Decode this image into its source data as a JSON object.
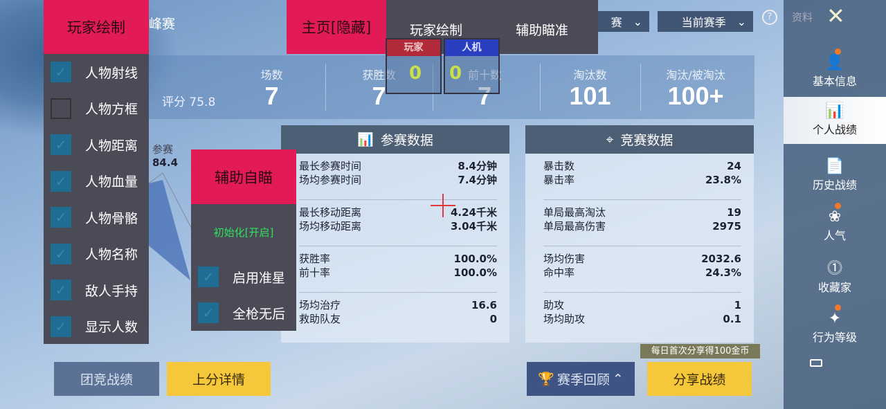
{
  "header": {
    "mode_fragment": "峰赛",
    "dropdown1": "赛",
    "dropdown2": "当前赛季",
    "help_icon": "question-circle-icon"
  },
  "stats": {
    "score_label": "评分 75.8",
    "items": [
      {
        "label": "场数",
        "value": "7"
      },
      {
        "label": "获胜数",
        "value": "7"
      },
      {
        "label": "前十数",
        "value": "7"
      },
      {
        "label": "淘汰数",
        "value": "101"
      },
      {
        "label": "淘汰/被淘汰",
        "value": "100+"
      }
    ]
  },
  "radar": {
    "label": "参赛",
    "value": "84.4"
  },
  "panel_left": {
    "title": "参赛数据",
    "groups": [
      [
        {
          "k": "最长参赛时间",
          "v": "8.4分钟"
        },
        {
          "k": "场均参赛时间",
          "v": "7.4分钟"
        }
      ],
      [
        {
          "k": "最长移动距离",
          "v": "4.24千米"
        },
        {
          "k": "场均移动距离",
          "v": "3.04千米"
        }
      ],
      [
        {
          "k": "获胜率",
          "v": "100.0%"
        },
        {
          "k": "前十率",
          "v": "100.0%"
        }
      ],
      [
        {
          "k": "场均治疗",
          "v": "16.6"
        },
        {
          "k": "救助队友",
          "v": "0"
        }
      ]
    ]
  },
  "panel_right": {
    "title": "竞赛数据",
    "groups": [
      [
        {
          "k": "暴击数",
          "v": "24"
        },
        {
          "k": "暴击率",
          "v": "23.8%"
        }
      ],
      [
        {
          "k": "单局最高淘汰",
          "v": "19"
        },
        {
          "k": "单局最高伤害",
          "v": "2975"
        }
      ],
      [
        {
          "k": "场均伤害",
          "v": "2032.6"
        },
        {
          "k": "命中率",
          "v": "24.3%"
        }
      ],
      [
        {
          "k": "助攻",
          "v": "1"
        },
        {
          "k": "场均助攻",
          "v": "0.1"
        }
      ]
    ]
  },
  "buttons": {
    "team": "团竞战绩",
    "rank": "上分详情",
    "season": "赛季回顾",
    "share": "分享战绩",
    "share_tip": "每日首次分享得100金币"
  },
  "sidebar": {
    "title": "资料",
    "items": [
      {
        "label": "基本信息",
        "dot": true
      },
      {
        "label": "个人战绩",
        "active": true
      },
      {
        "label": "历史战绩"
      },
      {
        "label": "人气",
        "dot": true
      },
      {
        "label": "收藏家"
      },
      {
        "label": "行为等级",
        "dot": true
      }
    ]
  },
  "overlay": {
    "player_menu": {
      "title": "玩家绘制",
      "items": [
        {
          "label": "人物射线",
          "checked": true
        },
        {
          "label": "人物方框",
          "checked": false
        },
        {
          "label": "人物距离",
          "checked": true
        },
        {
          "label": "人物血量",
          "checked": true
        },
        {
          "label": "人物骨骼",
          "checked": true
        },
        {
          "label": "人物名称",
          "checked": true
        },
        {
          "label": "敌人手持",
          "checked": true
        },
        {
          "label": "显示人数",
          "checked": true
        }
      ]
    },
    "tabs": {
      "home": "主页[隐藏]",
      "draw": "玩家绘制",
      "aim": "辅助瞄准"
    },
    "counters": {
      "player_label": "玩家",
      "player_count": "0",
      "bot_label": "人机",
      "bot_count": "0"
    },
    "aim_menu": {
      "title": "辅助自瞄",
      "status": "初始化[开启]",
      "items": [
        {
          "label": "启用准星",
          "checked": true
        },
        {
          "label": "全枪无后",
          "checked": true
        }
      ]
    }
  },
  "colors": {
    "accent_pink": "#e21a55",
    "status_green": "#2fe05a",
    "checkbox": "#1f6d92"
  }
}
